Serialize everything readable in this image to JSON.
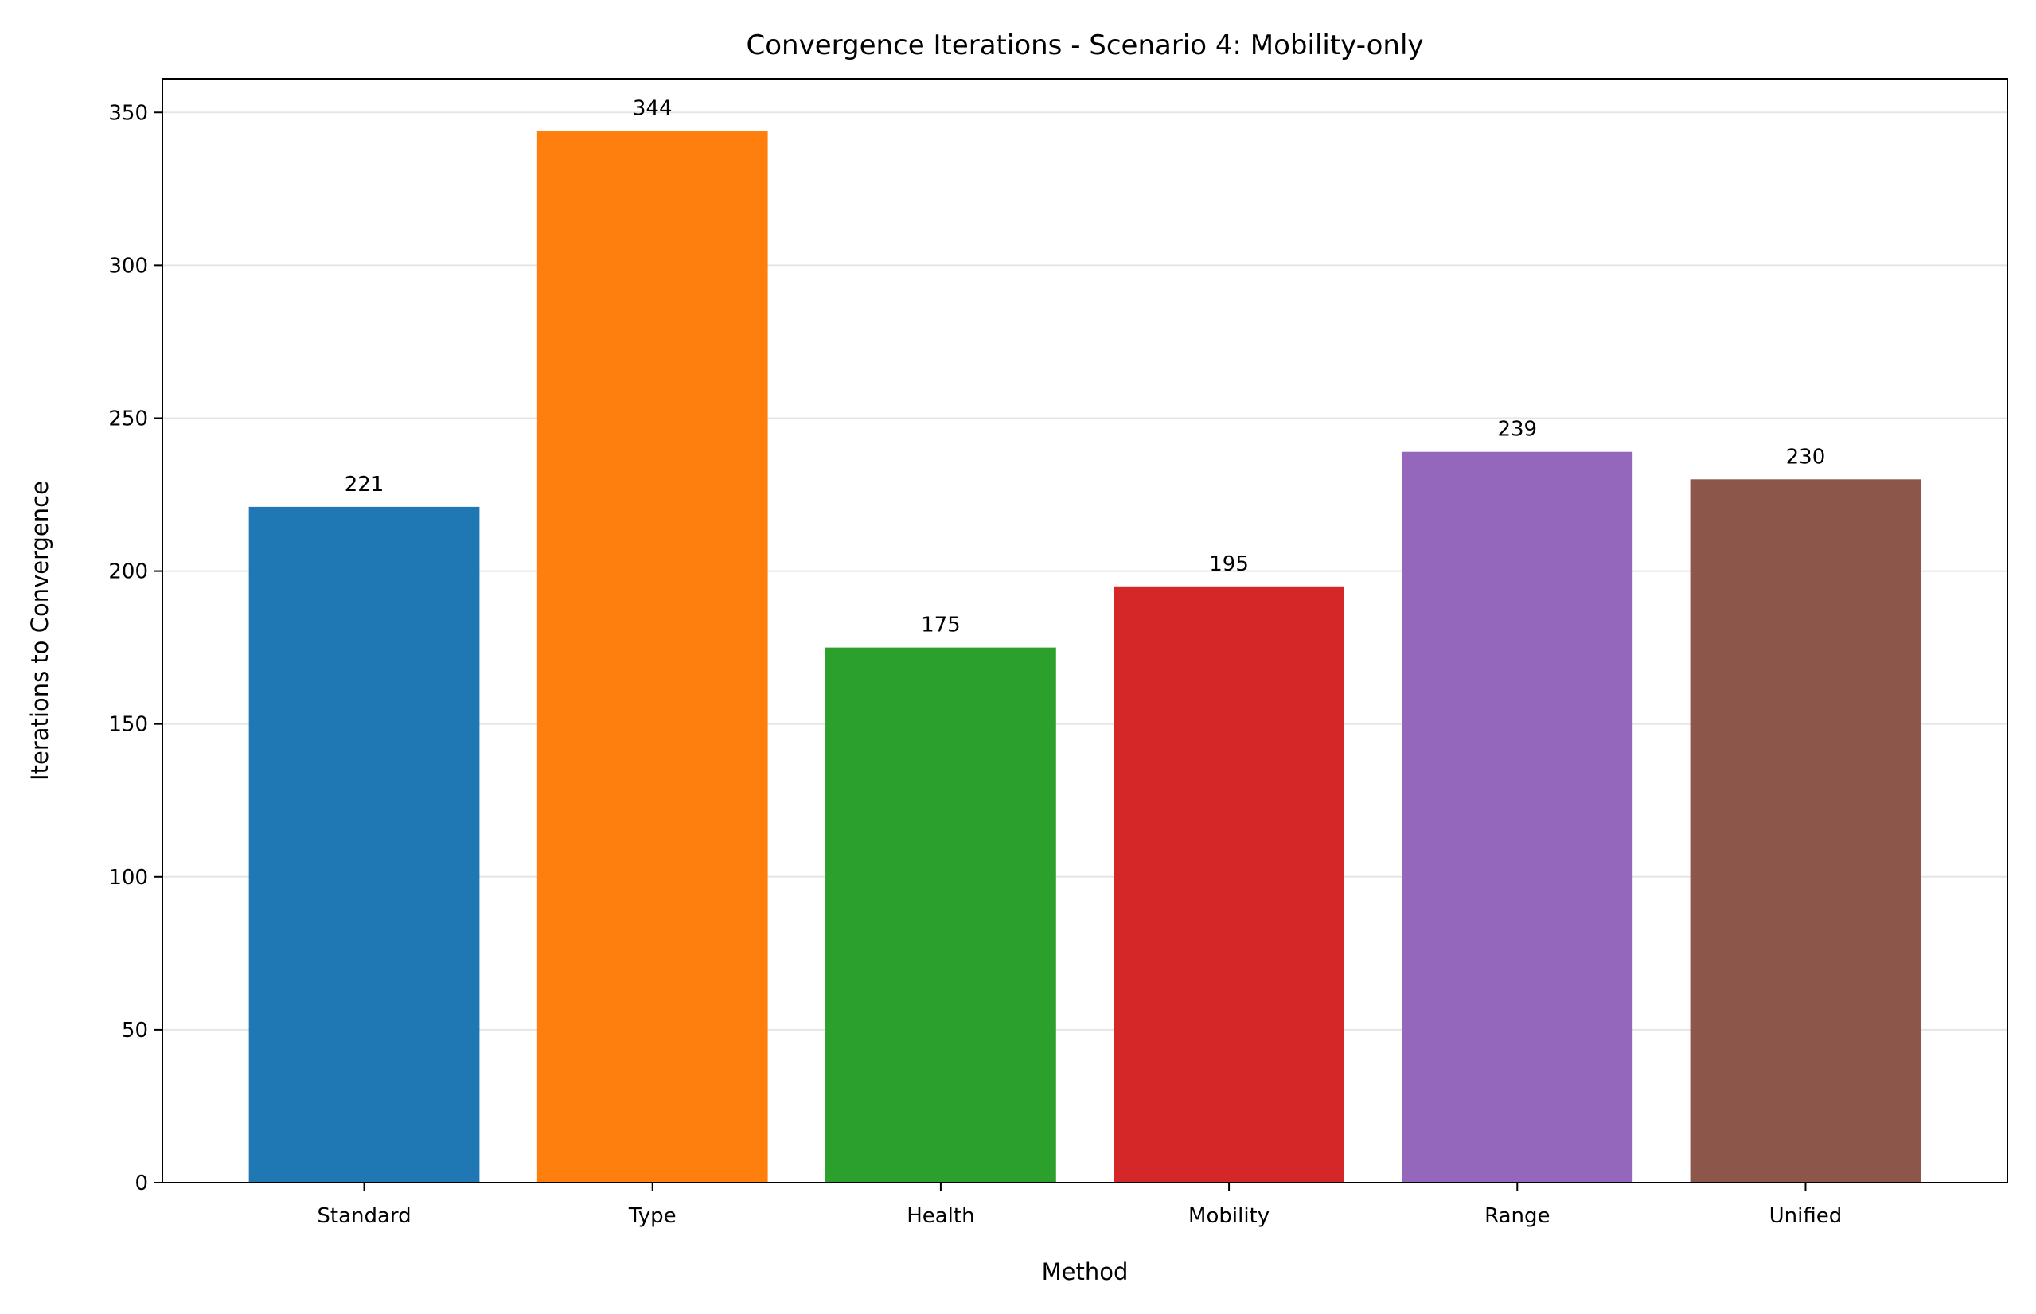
{
  "chart_data": {
    "type": "bar",
    "title": "Convergence Iterations - Scenario 4: Mobility-only",
    "xlabel": "Method",
    "ylabel": "Iterations to Convergence",
    "categories": [
      "Standard",
      "Type",
      "Health",
      "Mobility",
      "Range",
      "Unified"
    ],
    "values": [
      221,
      344,
      175,
      195,
      239,
      230
    ],
    "value_labels": [
      "221",
      "344",
      "175",
      "195",
      "239",
      "230"
    ],
    "colors": [
      "#1f77b4",
      "#ff7f0e",
      "#2ca02c",
      "#d62728",
      "#9467bd",
      "#8c564b"
    ],
    "ylim": [
      0,
      361
    ],
    "yticks": [
      0,
      50,
      100,
      150,
      200,
      250,
      300,
      350
    ],
    "ytick_labels": [
      "0",
      "50",
      "100",
      "150",
      "200",
      "250",
      "300",
      "350"
    ],
    "grid": "y-major",
    "legend": "none"
  }
}
